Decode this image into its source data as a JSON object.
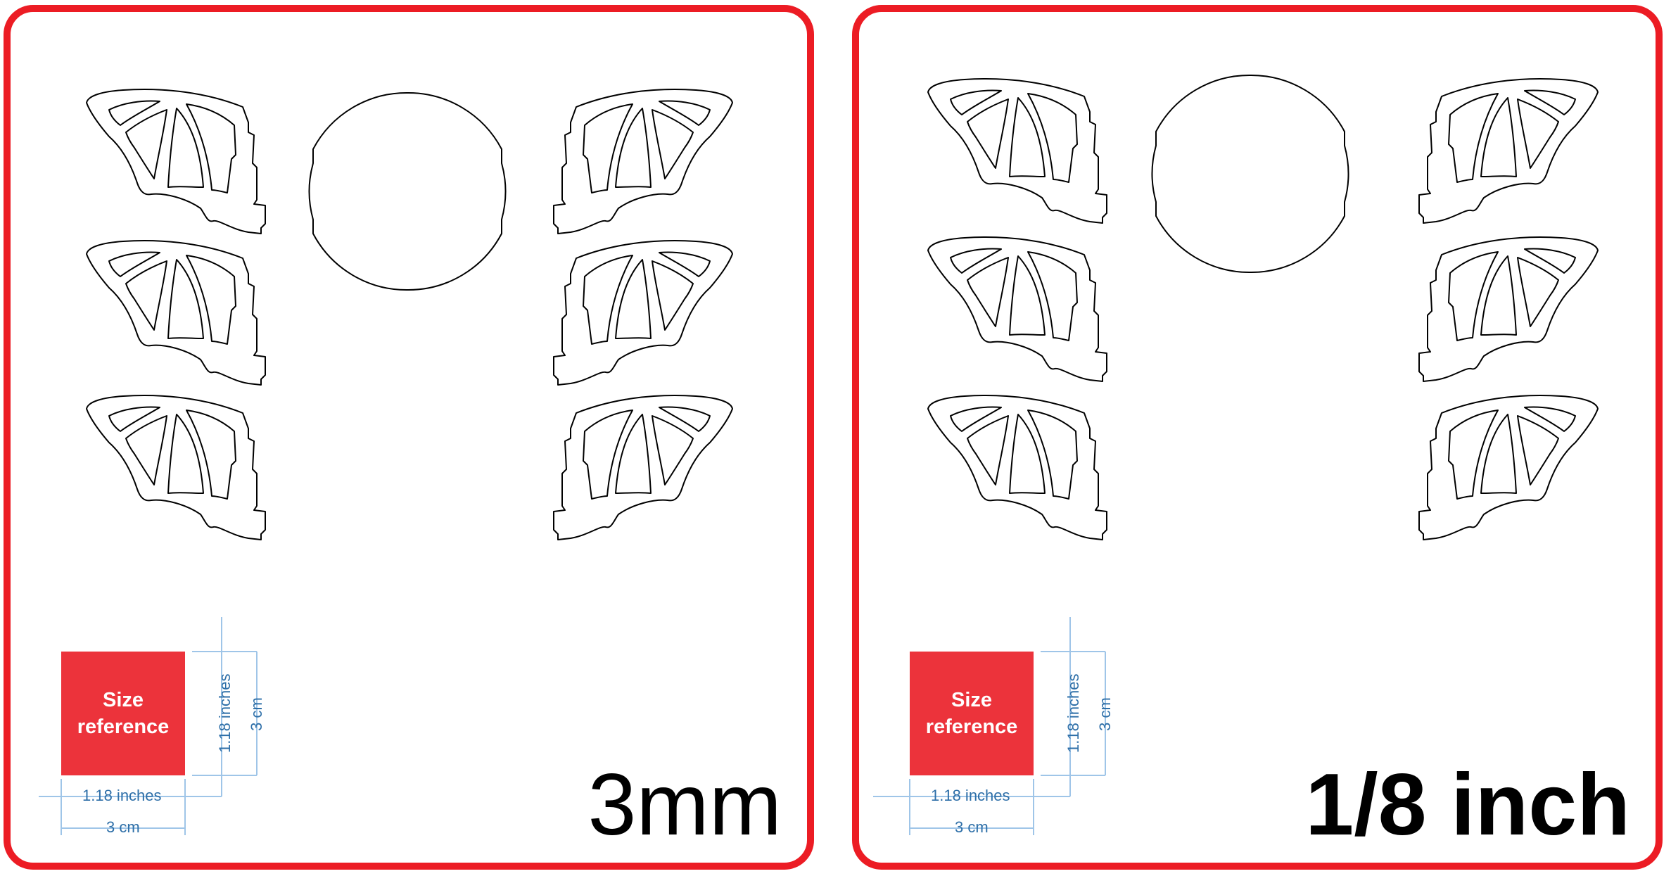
{
  "panels": [
    {
      "thickness_label": "3mm",
      "size_reference": {
        "label": "Size reference",
        "width_inches": "1.18 inches",
        "width_cm": "3 cm",
        "height_inches": "1.18 inches",
        "height_cm": "3 cm"
      }
    },
    {
      "thickness_label": "1/8 inch",
      "size_reference": {
        "label": "Size reference",
        "width_inches": "1.18 inches",
        "width_cm": "3 cm",
        "height_inches": "1.18 inches",
        "height_cm": "3 cm"
      }
    }
  ],
  "colors": {
    "frame": "#ec1c24",
    "size_box": "#ec333b",
    "dimension_text": "#2e6fa8",
    "dimension_line": "#9fc5e8",
    "cut_line": "#000000"
  }
}
